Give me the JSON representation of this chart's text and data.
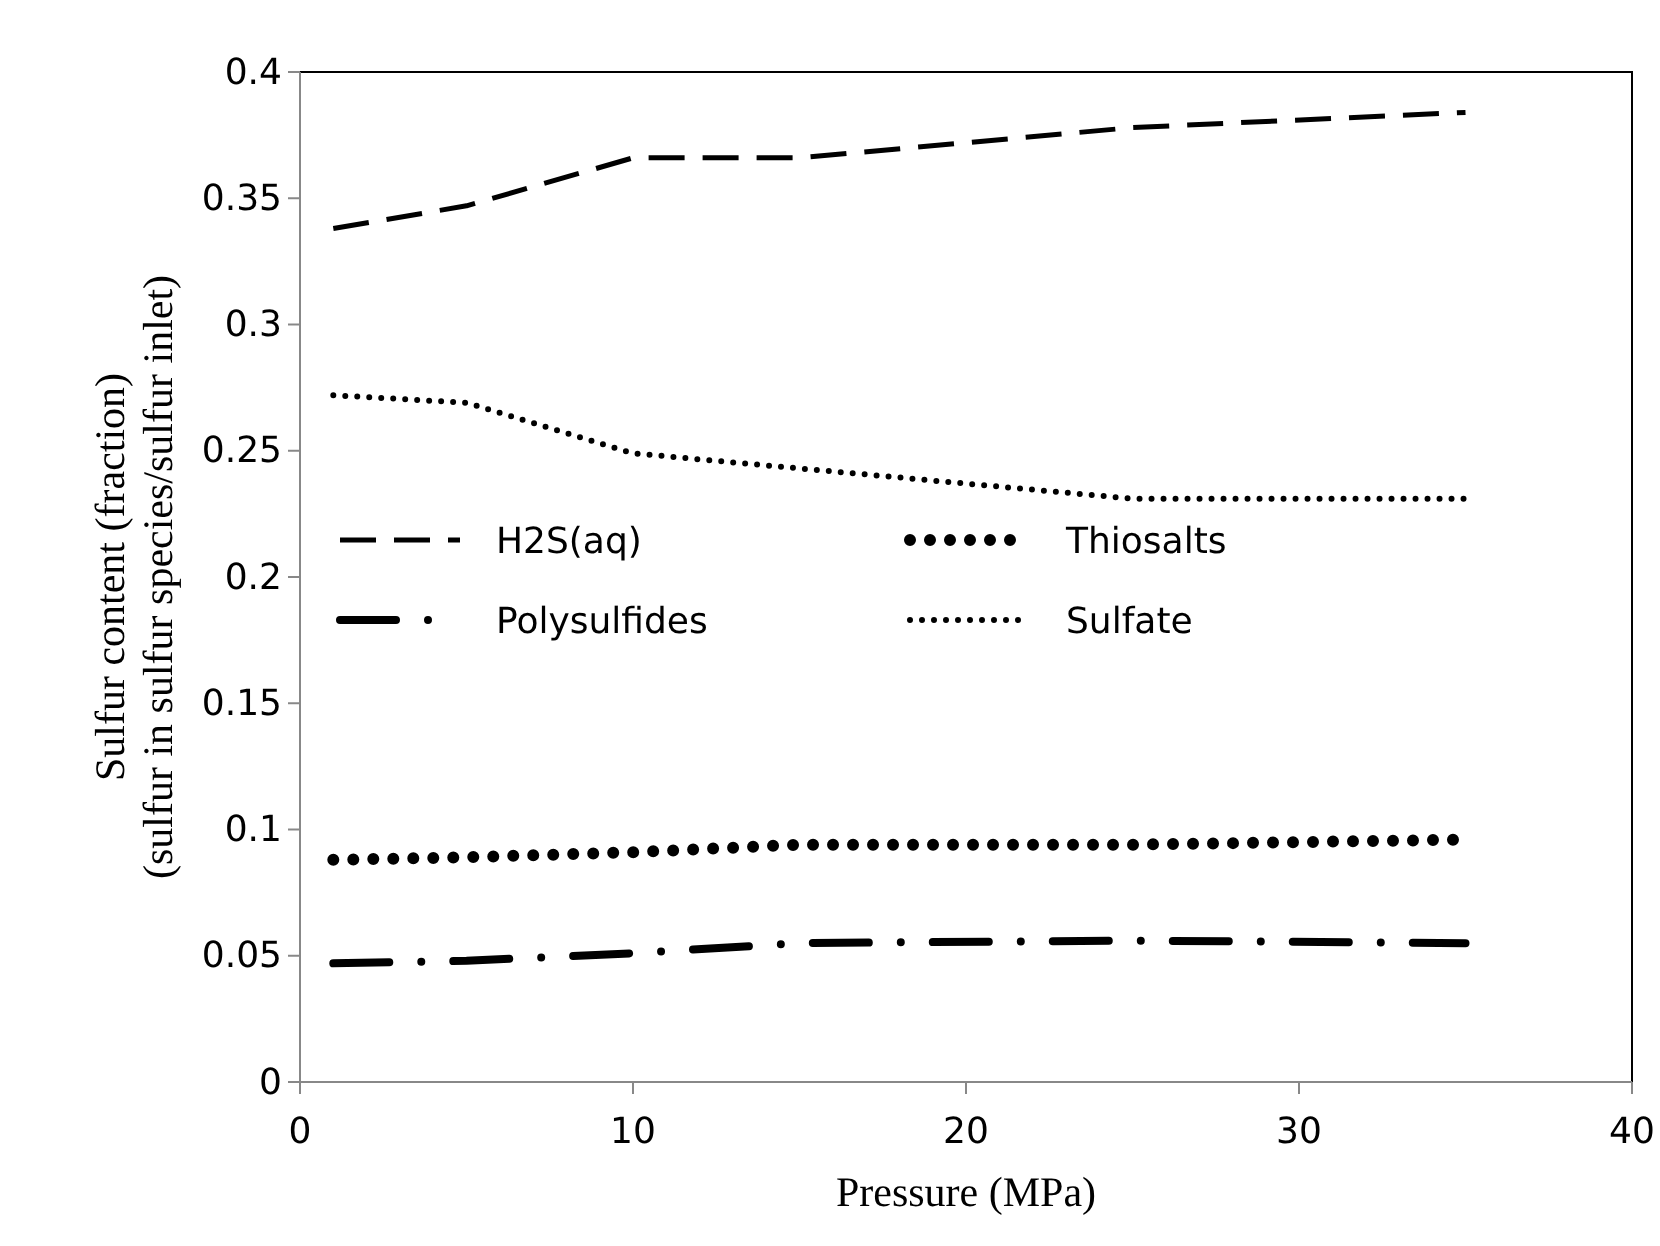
{
  "chart_data": {
    "type": "line",
    "xlabel": "Pressure (MPa)",
    "ylabel": "Sulfur content  (fraction)\n(sulfur in sulfur species/sulfur  inlet)",
    "x": [
      1,
      5,
      10,
      15,
      25,
      35
    ],
    "xlim": [
      0,
      40
    ],
    "xticks": [
      0,
      10,
      20,
      30,
      40
    ],
    "ylim": [
      0,
      0.4
    ],
    "yticks": [
      0,
      0.05,
      0.1,
      0.15,
      0.2,
      0.25,
      0.3,
      0.35,
      0.4
    ],
    "grid": false,
    "legend": "left",
    "marker": "none",
    "series": [
      {
        "name": "H2S(aq)",
        "color": "#000000",
        "line_style": "dashed",
        "values": [
          0.338,
          0.347,
          0.366,
          0.366,
          0.378,
          0.384
        ]
      },
      {
        "name": "Thiosalts",
        "color": "#000000",
        "line_style": "dotted",
        "values": [
          0.088,
          0.089,
          0.091,
          0.094,
          0.094,
          0.096
        ]
      },
      {
        "name": "Polysulfides",
        "color": "#000000",
        "line_style": "dashdot",
        "values": [
          0.047,
          0.048,
          0.051,
          0.055,
          0.056,
          0.055
        ]
      },
      {
        "name": "Sulfate",
        "color": "#000000",
        "line_style": "finedotted",
        "values": [
          0.272,
          0.269,
          0.249,
          0.243,
          0.231,
          0.231
        ]
      }
    ]
  }
}
